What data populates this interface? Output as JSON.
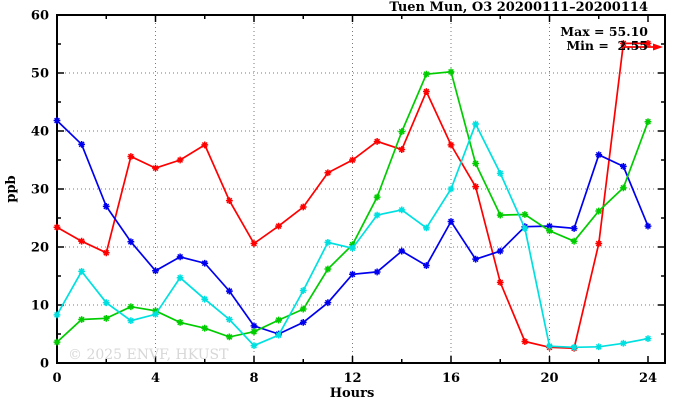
{
  "chart_data": {
    "type": "line",
    "title": "Tuen Mun, O3 20200111–20200114",
    "xlabel": "Hours",
    "ylabel": "ppb",
    "xlim": [
      0,
      24.7
    ],
    "ylim": [
      0,
      60
    ],
    "xticks": [
      0,
      4,
      8,
      12,
      16,
      20,
      24
    ],
    "yticks": [
      0,
      10,
      20,
      30,
      40,
      50,
      60
    ],
    "minor_xtick_step": 2,
    "minor_ytick_step": 5,
    "grid": "dotted-at-major-ticks",
    "legend": "none",
    "watermark": "© 2025 ENVF, HKUST",
    "annotations": {
      "max_label": "Max = 55.10",
      "min_label": "Min =  2.55",
      "max_value": 55.1,
      "min_value": 2.55,
      "arrow_color": "#ff0000"
    },
    "x": [
      0,
      1,
      2,
      3,
      4,
      5,
      6,
      7,
      8,
      9,
      10,
      11,
      12,
      13,
      14,
      15,
      16,
      17,
      18,
      19,
      20,
      21,
      22,
      23,
      24
    ],
    "series": [
      {
        "name": "series-red",
        "color": "#ff0000",
        "values": [
          23.4,
          21.0,
          19.0,
          35.6,
          33.6,
          35.0,
          37.6,
          28.0,
          20.6,
          23.6,
          26.9,
          32.8,
          35.0,
          38.2,
          36.8,
          46.8,
          37.6,
          30.4,
          13.9,
          3.7,
          2.7,
          2.55,
          20.6,
          55.1,
          55.1
        ]
      },
      {
        "name": "series-blue",
        "color": "#0000ee",
        "values": [
          41.8,
          37.7,
          27.0,
          20.9,
          15.9,
          18.3,
          17.2,
          12.4,
          6.4,
          5.0,
          7.0,
          10.4,
          15.3,
          15.7,
          19.3,
          16.8,
          24.4,
          17.9,
          19.3,
          23.5,
          23.6,
          23.2,
          35.9,
          33.9,
          23.6
        ]
      },
      {
        "name": "series-green",
        "color": "#00cc00",
        "values": [
          3.6,
          7.5,
          7.7,
          9.7,
          9.0,
          7.0,
          6.0,
          4.5,
          5.4,
          7.4,
          9.3,
          16.2,
          20.4,
          28.6,
          39.9,
          49.8,
          50.2,
          34.4,
          25.5,
          25.6,
          22.8,
          21.0,
          26.2,
          30.2,
          41.6
        ]
      },
      {
        "name": "series-cyan",
        "color": "#00e0e0",
        "values": [
          8.3,
          15.8,
          10.4,
          7.3,
          8.4,
          14.7,
          11.0,
          7.5,
          3.0,
          4.8,
          12.5,
          20.8,
          19.8,
          25.5,
          26.4,
          23.3,
          30.0,
          41.2,
          32.7,
          23.2,
          2.9,
          2.7,
          2.8,
          3.4,
          4.2
        ]
      }
    ]
  }
}
